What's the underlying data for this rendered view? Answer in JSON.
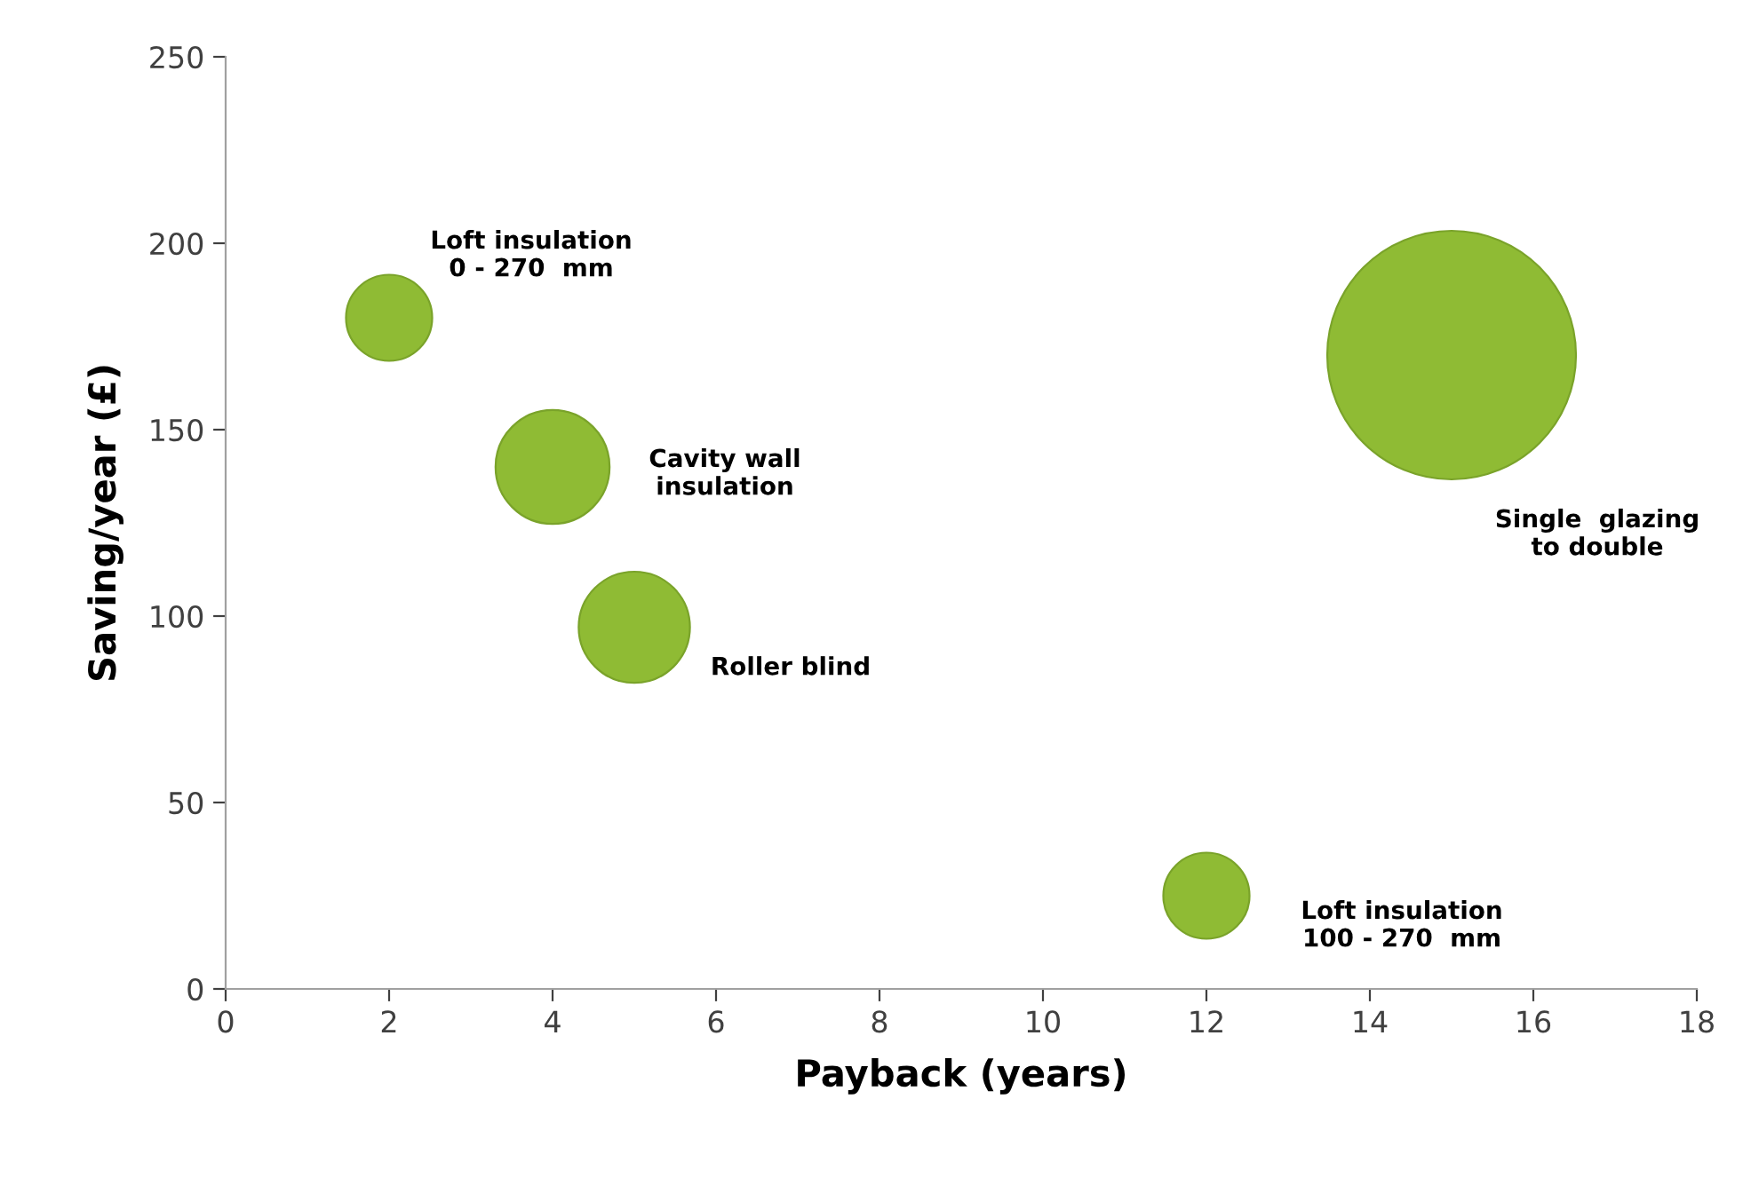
{
  "chart_data": {
    "type": "bubble",
    "xlabel": "Payback (years)",
    "ylabel": "Saving/year (£)",
    "series": [
      {
        "name": "Loft insulation\n0 - 270  mm",
        "color": "#8fbb34",
        "x": [
          2
        ],
        "values": [
          180
        ],
        "sizes": [
          0.12
        ]
      },
      {
        "name": "Cavity wall\ninsulation",
        "color": "#8fbb34",
        "x": [
          4
        ],
        "values": [
          140
        ],
        "sizes": [
          0.21
        ]
      },
      {
        "name": "Roller blind",
        "color": "#8fbb34",
        "x": [
          5
        ],
        "values": [
          97
        ],
        "sizes": [
          0.2
        ]
      },
      {
        "name": "Loft insulation\n100 - 270  mm",
        "color": "#8fbb34",
        "x": [
          12
        ],
        "values": [
          25
        ],
        "sizes": [
          0.12
        ]
      },
      {
        "name": "Single  glazing\nto double",
        "color": "#8fbb34",
        "x": [
          15
        ],
        "values": [
          170
        ],
        "sizes": [
          1
        ]
      }
    ],
    "xlim": [
      0,
      18
    ],
    "xticks": [
      0,
      2,
      4,
      6,
      8,
      10,
      12,
      14,
      16,
      18
    ],
    "ylim": [
      0,
      250
    ],
    "yticks": [
      0,
      50,
      100,
      150,
      200,
      250
    ],
    "grid": false,
    "legend": false
  }
}
